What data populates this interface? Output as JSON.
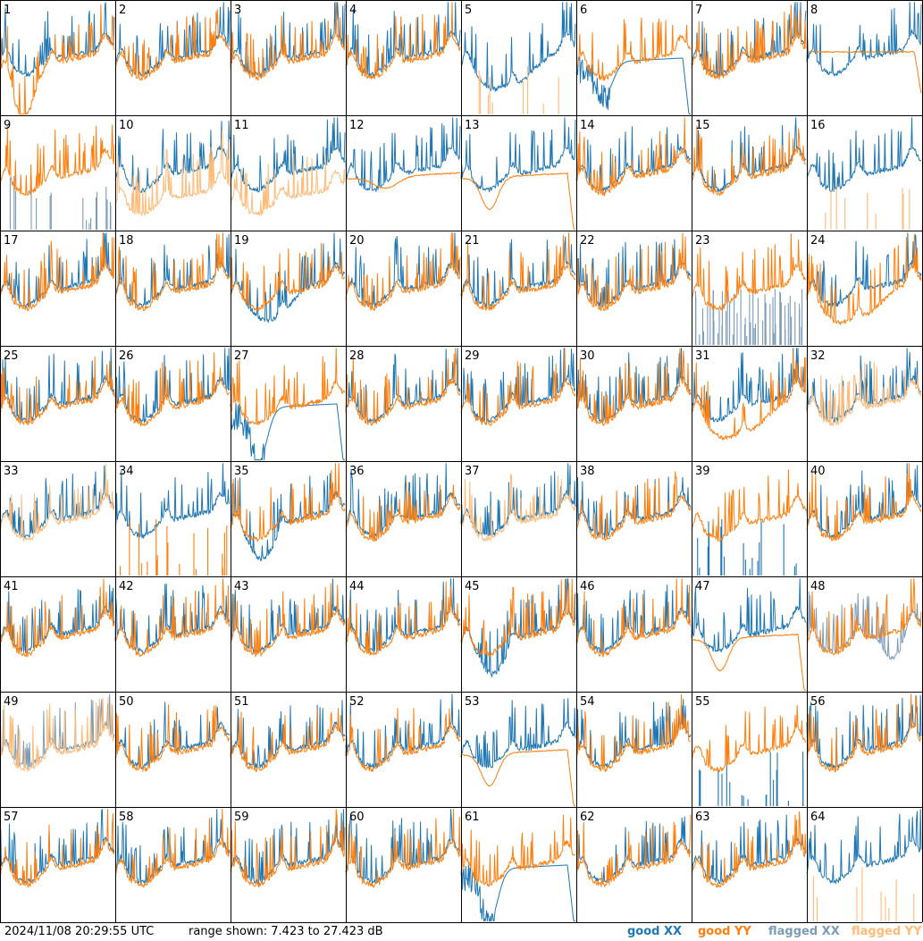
{
  "footer": {
    "timestamp": "2024/11/08 20:29:55 UTC",
    "range": "range shown: 7.423 to 27.423 dB"
  },
  "legend": {
    "good_xx": "good XX",
    "good_yy": "good YY",
    "flagged_xx": "flagged XX",
    "flagged_yy": "flagged YY"
  },
  "colors": {
    "good_xx": "#1f77b4",
    "good_yy": "#ff7f0e",
    "flagged_xx": "#7c9cb8",
    "flagged_yy": "#ffbb78",
    "grid": "#000000"
  },
  "chart_data": {
    "type": "line",
    "layout": "8x8 small multiples, one panel per antenna",
    "ylim_db": [
      7.423,
      27.423
    ],
    "panels": [
      {
        "id": 1,
        "xx": "good",
        "yy": "good",
        "pattern": "yy_dip_left"
      },
      {
        "id": 2,
        "xx": "good",
        "yy": "good",
        "pattern": "normal"
      },
      {
        "id": 3,
        "xx": "good",
        "yy": "good",
        "pattern": "normal"
      },
      {
        "id": 4,
        "xx": "good",
        "yy": "good",
        "pattern": "normal"
      },
      {
        "id": 5,
        "xx": "good",
        "yy": "flagged",
        "pattern": "xx_deep_yy_spikes"
      },
      {
        "id": 6,
        "xx": "good",
        "yy": "good",
        "pattern": "xx_rolloff"
      },
      {
        "id": 7,
        "xx": "good",
        "yy": "good",
        "pattern": "normal"
      },
      {
        "id": 8,
        "xx": "good",
        "yy": "good",
        "pattern": "yy_smooth_drop"
      },
      {
        "id": 9,
        "xx": "flagged",
        "yy": "good",
        "pattern": "xx_spikes"
      },
      {
        "id": 10,
        "xx": "good",
        "yy": "flagged",
        "pattern": "yy_low"
      },
      {
        "id": 11,
        "xx": "good",
        "yy": "flagged",
        "pattern": "yy_low"
      },
      {
        "id": 12,
        "xx": "good",
        "yy": "good",
        "pattern": "yy_smooth"
      },
      {
        "id": 13,
        "xx": "good",
        "yy": "good",
        "pattern": "yy_smooth_rolloff"
      },
      {
        "id": 14,
        "xx": "good",
        "yy": "good",
        "pattern": "normal"
      },
      {
        "id": 15,
        "xx": "good",
        "yy": "good",
        "pattern": "normal"
      },
      {
        "id": 16,
        "xx": "good",
        "yy": "flagged",
        "pattern": "yy_spikes"
      },
      {
        "id": 17,
        "xx": "good",
        "yy": "good",
        "pattern": "normal"
      },
      {
        "id": 18,
        "xx": "good",
        "yy": "good",
        "pattern": "normal"
      },
      {
        "id": 19,
        "xx": "good",
        "yy": "good",
        "pattern": "xx_low_mid"
      },
      {
        "id": 20,
        "xx": "good",
        "yy": "good",
        "pattern": "normal"
      },
      {
        "id": 21,
        "xx": "good",
        "yy": "good",
        "pattern": "normal"
      },
      {
        "id": 22,
        "xx": "good",
        "yy": "good",
        "pattern": "normal"
      },
      {
        "id": 23,
        "xx": "flagged",
        "yy": "good",
        "pattern": "xx_noise_low"
      },
      {
        "id": 24,
        "xx": "good",
        "yy": "good",
        "pattern": "yy_dip_mid"
      },
      {
        "id": 25,
        "xx": "good",
        "yy": "good",
        "pattern": "normal"
      },
      {
        "id": 26,
        "xx": "good",
        "yy": "good",
        "pattern": "normal"
      },
      {
        "id": 27,
        "xx": "good",
        "yy": "good",
        "pattern": "xx_deep_rolloff"
      },
      {
        "id": 28,
        "xx": "good",
        "yy": "good",
        "pattern": "normal"
      },
      {
        "id": 29,
        "xx": "good",
        "yy": "good",
        "pattern": "normal"
      },
      {
        "id": 30,
        "xx": "good",
        "yy": "good",
        "pattern": "normal"
      },
      {
        "id": 31,
        "xx": "good",
        "yy": "good",
        "pattern": "yy_dip_mid"
      },
      {
        "id": 32,
        "xx": "good",
        "yy": "flagged",
        "pattern": "yy_noisy"
      },
      {
        "id": 33,
        "xx": "good",
        "yy": "flagged",
        "pattern": "normal"
      },
      {
        "id": 34,
        "xx": "good",
        "yy": "good",
        "pattern": "yy_spikes_low"
      },
      {
        "id": 35,
        "xx": "good",
        "yy": "good",
        "pattern": "xx_dip_mid"
      },
      {
        "id": 36,
        "xx": "good",
        "yy": "good",
        "pattern": "normal"
      },
      {
        "id": 37,
        "xx": "good",
        "yy": "flagged",
        "pattern": "normal"
      },
      {
        "id": 38,
        "xx": "good",
        "yy": "good",
        "pattern": "normal"
      },
      {
        "id": 39,
        "xx": "good",
        "yy": "good",
        "pattern": "xx_spikes"
      },
      {
        "id": 40,
        "xx": "good",
        "yy": "good",
        "pattern": "normal"
      },
      {
        "id": 41,
        "xx": "good",
        "yy": "good",
        "pattern": "normal"
      },
      {
        "id": 42,
        "xx": "good",
        "yy": "good",
        "pattern": "normal"
      },
      {
        "id": 43,
        "xx": "good",
        "yy": "good",
        "pattern": "normal"
      },
      {
        "id": 44,
        "xx": "good",
        "yy": "good",
        "pattern": "normal"
      },
      {
        "id": 45,
        "xx": "good",
        "yy": "good",
        "pattern": "xx_dip_mid"
      },
      {
        "id": 46,
        "xx": "good",
        "yy": "good",
        "pattern": "normal"
      },
      {
        "id": 47,
        "xx": "good",
        "yy": "good",
        "pattern": "yy_smooth_rolloff"
      },
      {
        "id": 48,
        "xx": "flagged",
        "yy": "good",
        "pattern": "xx_dip_right"
      },
      {
        "id": 49,
        "xx": "flagged",
        "yy": "flagged",
        "pattern": "normal"
      },
      {
        "id": 50,
        "xx": "good",
        "yy": "good",
        "pattern": "normal"
      },
      {
        "id": 51,
        "xx": "good",
        "yy": "good",
        "pattern": "normal"
      },
      {
        "id": 52,
        "xx": "good",
        "yy": "good",
        "pattern": "normal"
      },
      {
        "id": 53,
        "xx": "good",
        "yy": "good",
        "pattern": "yy_smooth_rolloff"
      },
      {
        "id": 54,
        "xx": "good",
        "yy": "good",
        "pattern": "normal"
      },
      {
        "id": 55,
        "xx": "good",
        "yy": "good",
        "pattern": "xx_spikes"
      },
      {
        "id": 56,
        "xx": "good",
        "yy": "good",
        "pattern": "normal"
      },
      {
        "id": 57,
        "xx": "good",
        "yy": "good",
        "pattern": "normal"
      },
      {
        "id": 58,
        "xx": "good",
        "yy": "good",
        "pattern": "normal"
      },
      {
        "id": 59,
        "xx": "good",
        "yy": "good",
        "pattern": "normal"
      },
      {
        "id": 60,
        "xx": "good",
        "yy": "good",
        "pattern": "normal"
      },
      {
        "id": 61,
        "xx": "good",
        "yy": "good",
        "pattern": "xx_deep_rolloff"
      },
      {
        "id": 62,
        "xx": "good",
        "yy": "good",
        "pattern": "normal"
      },
      {
        "id": 63,
        "xx": "good",
        "yy": "good",
        "pattern": "normal"
      },
      {
        "id": 64,
        "xx": "good",
        "yy": "flagged",
        "pattern": "yy_spikes"
      }
    ]
  }
}
